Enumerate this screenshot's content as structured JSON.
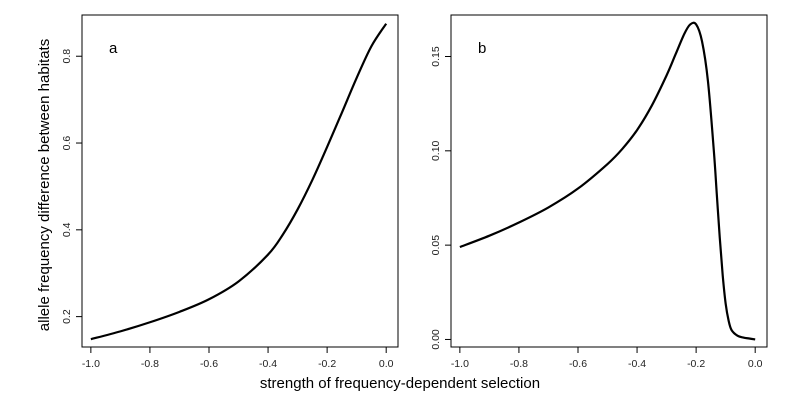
{
  "figure": {
    "xlabel": "strength of frequency-dependent selection",
    "ylabel": "allele frequency difference between habitats"
  },
  "chart_data": [
    {
      "type": "line",
      "panel_label": "a",
      "xlim": [
        -1.03,
        0.04
      ],
      "ylim": [
        0.13,
        0.895
      ],
      "x_ticks": [
        -1.0,
        -0.8,
        -0.6,
        -0.4,
        -0.2,
        0.0
      ],
      "x_tick_labels": [
        "-1.0",
        "-0.8",
        "-0.6",
        "-0.4",
        "-0.2",
        "0.0"
      ],
      "y_ticks": [
        0.2,
        0.4,
        0.6,
        0.8
      ],
      "y_tick_labels": [
        "0.2",
        "0.4",
        "0.6",
        "0.8"
      ],
      "grid": false,
      "series": [
        {
          "color": "#000000",
          "x": [
            -1.0,
            -0.9,
            -0.8,
            -0.7,
            -0.6,
            -0.5,
            -0.4,
            -0.35,
            -0.3,
            -0.25,
            -0.2,
            -0.15,
            -0.1,
            -0.05,
            0.0
          ],
          "y": [
            0.148,
            0.166,
            0.187,
            0.211,
            0.24,
            0.281,
            0.343,
            0.389,
            0.447,
            0.515,
            0.591,
            0.67,
            0.75,
            0.823,
            0.875
          ]
        }
      ]
    },
    {
      "type": "line",
      "panel_label": "b",
      "xlim": [
        -1.03,
        0.04
      ],
      "ylim": [
        -0.004,
        0.172
      ],
      "x_ticks": [
        -1.0,
        -0.8,
        -0.6,
        -0.4,
        -0.2,
        0.0
      ],
      "x_tick_labels": [
        "-1.0",
        "-0.8",
        "-0.6",
        "-0.4",
        "-0.2",
        "0.0"
      ],
      "y_ticks": [
        0.0,
        0.05,
        0.1,
        0.15
      ],
      "y_tick_labels": [
        "0.00",
        "0.05",
        "0.10",
        "0.15"
      ],
      "grid": false,
      "series": [
        {
          "color": "#000000",
          "x": [
            -1.0,
            -0.9,
            -0.8,
            -0.7,
            -0.6,
            -0.5,
            -0.45,
            -0.4,
            -0.35,
            -0.3,
            -0.27,
            -0.24,
            -0.22,
            -0.2,
            -0.18,
            -0.16,
            -0.14,
            -0.13,
            -0.12,
            -0.11,
            -0.1,
            -0.09,
            -0.08,
            -0.06,
            -0.04,
            -0.02,
            0.0
          ],
          "y": [
            0.049,
            0.055,
            0.062,
            0.07,
            0.08,
            0.093,
            0.101,
            0.111,
            0.124,
            0.14,
            0.151,
            0.162,
            0.167,
            0.167,
            0.158,
            0.137,
            0.1,
            0.077,
            0.054,
            0.034,
            0.019,
            0.01,
            0.005,
            0.002,
            0.001,
            0.0005,
            0.0
          ]
        }
      ]
    }
  ]
}
